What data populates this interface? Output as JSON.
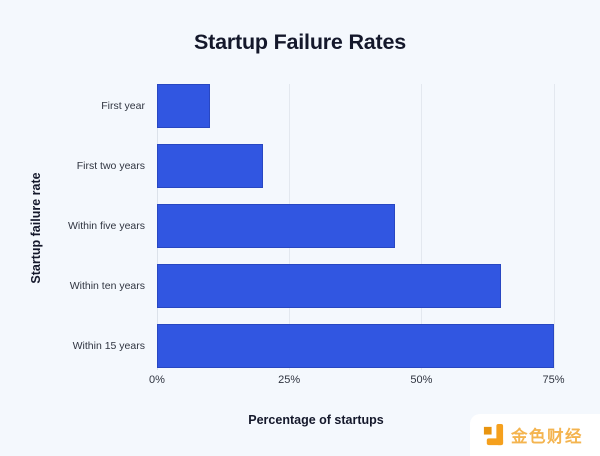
{
  "page": {
    "background": "#F4F8FD",
    "text_dark": "#14182B",
    "label_color": "#2F3440"
  },
  "chart_data": {
    "type": "bar",
    "orientation": "horizontal",
    "title": "Startup Failure Rates",
    "xlabel": "Percentage of startups",
    "ylabel": "Startup failure rate",
    "categories": [
      "First year",
      "First two years",
      "Within five years",
      "Within ten years",
      "Within 15 years"
    ],
    "values": [
      10,
      20,
      45,
      65,
      75
    ],
    "unit": "%",
    "xlim": [
      0,
      80
    ],
    "x_ticks": [
      {
        "value": 0,
        "label": "0%"
      },
      {
        "value": 25,
        "label": "25%"
      },
      {
        "value": 50,
        "label": "50%"
      },
      {
        "value": 75,
        "label": "75%"
      }
    ],
    "grid": true,
    "legend": false,
    "bar_color": "#3156E1",
    "bar_border_color": "#2847C2",
    "grid_color": "#E3E8EF",
    "zero_axis_color": "#DCE2EA"
  },
  "watermark": {
    "text": "金色财经",
    "text_color": "#F3AC3C",
    "logo_color": "#F5A01D",
    "logo_accent_color": "#E8940F",
    "background": "#FFFFFF",
    "icon": "jinse-logo-icon"
  }
}
